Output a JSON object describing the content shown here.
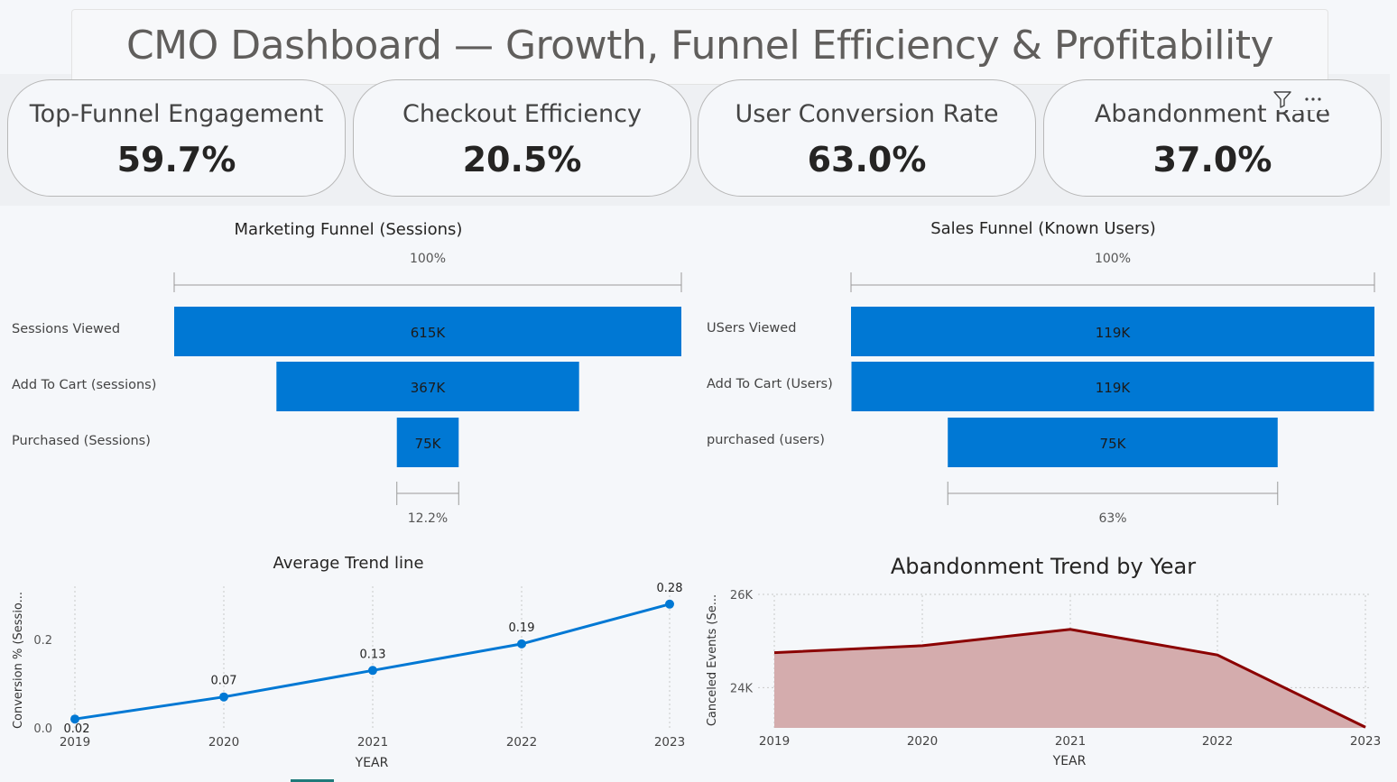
{
  "title": "CMO Dashboard — Growth, Funnel Efficiency & Profitability",
  "kpis": [
    {
      "label": "Top-Funnel Engagement",
      "value": "59.7%"
    },
    {
      "label": "Checkout Efficiency",
      "value": "20.5%"
    },
    {
      "label": "User Conversion Rate",
      "value": "63.0%"
    },
    {
      "label": "Abandonment Rate",
      "value": "37.0%"
    }
  ],
  "accent": "#0078d4",
  "chart_data": [
    {
      "type": "bar",
      "subtype": "funnel",
      "title": "Marketing Funnel (Sessions)",
      "categories": [
        "Sessions Viewed",
        "Add To Cart (sessions)",
        "Purchased (Sessions)"
      ],
      "values": [
        615000,
        367000,
        75000
      ],
      "value_labels": [
        "615K",
        "367K",
        "75K"
      ],
      "top_percent": "100%",
      "bottom_percent": "12.2%",
      "color": "#0078d4"
    },
    {
      "type": "bar",
      "subtype": "funnel",
      "title": "Sales Funnel (Known Users)",
      "categories": [
        "USers Viewed",
        "Add To Cart (Users)",
        "purchased (users)"
      ],
      "values": [
        119000,
        118800,
        75000
      ],
      "value_labels": [
        "119K",
        "119K",
        "75K"
      ],
      "top_percent": "100%",
      "bottom_percent": "63%",
      "color": "#0078d4"
    },
    {
      "type": "line",
      "title": "Average Trend line",
      "xlabel": "YEAR",
      "ylabel": "Conversion % (Sessio...",
      "x": [
        "2019",
        "2020",
        "2021",
        "2022",
        "2023"
      ],
      "values": [
        0.02,
        0.07,
        0.13,
        0.19,
        0.28
      ],
      "value_labels": [
        "0.02",
        "0.07",
        "0.13",
        "0.19",
        "0.28"
      ],
      "yticks": [
        "0.0",
        "0.2"
      ],
      "ylim": [
        0,
        0.3
      ],
      "color": "#0078d4",
      "grid": "vertical dotted"
    },
    {
      "type": "area",
      "title": "Abandonment Trend by Year",
      "xlabel": "YEAR",
      "ylabel": "Canceled Events (Se...",
      "x": [
        "2019",
        "2020",
        "2021",
        "2022",
        "2023"
      ],
      "values": [
        24750,
        24900,
        25250,
        24700,
        23150
      ],
      "yticks": [
        "24K",
        "26K"
      ],
      "ylim": [
        23000,
        26000
      ],
      "line_color": "#8b0000",
      "fill_color": "#d4acad",
      "grid": "dotted"
    }
  ]
}
